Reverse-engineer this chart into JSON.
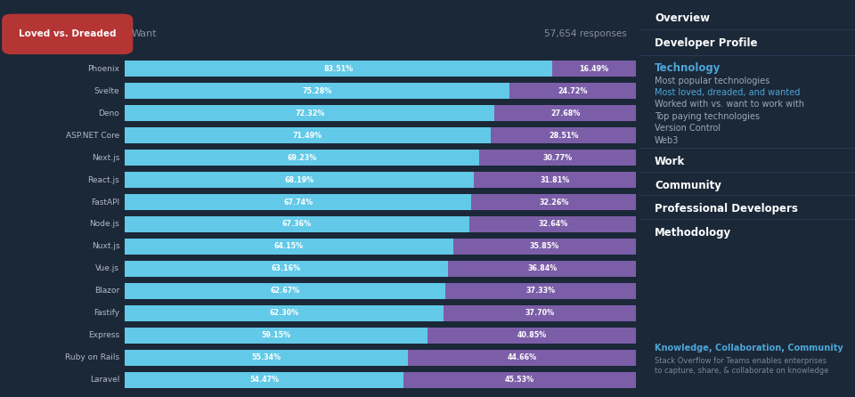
{
  "bg_color": "#1b2838",
  "sidebar_color": "#162030",
  "bar_loved_color": "#62c9e8",
  "bar_dreaded_color": "#7b5ea7",
  "text_color": "#ffffff",
  "label_color": "#b0b8c8",
  "response_color": "#888ea0",
  "button_color": "#b53535",
  "button_text": "Loved vs. Dreaded",
  "want_text": "Want",
  "responses_text": "57,654 responses",
  "categories": [
    "Phoenix",
    "Svelte",
    "Deno",
    "ASP.NET Core",
    "Next.js",
    "React.js",
    "FastAPI",
    "Node.js",
    "Nuxt.js",
    "Vue.js",
    "Blazor",
    "Fastify",
    "Express",
    "Ruby on Rails",
    "Laravel"
  ],
  "loved": [
    83.51,
    75.28,
    72.32,
    71.49,
    69.23,
    68.19,
    67.74,
    67.36,
    64.15,
    63.16,
    62.67,
    62.3,
    59.15,
    55.34,
    54.47
  ],
  "dreaded": [
    16.49,
    24.72,
    27.68,
    28.51,
    30.77,
    31.81,
    32.26,
    32.64,
    35.85,
    36.84,
    37.33,
    37.7,
    40.85,
    44.66,
    45.53
  ],
  "sidebar_tech_color": "#4da6d9",
  "sidebar_bottom_title": "Knowledge, Collaboration, Community",
  "sidebar_bottom_text": "Stack Overflow for Teams enables enterprises\nto capture, share, & collaborate on knowledge",
  "divider_color": "#2a3f5a",
  "gap_color": "#1b2838"
}
